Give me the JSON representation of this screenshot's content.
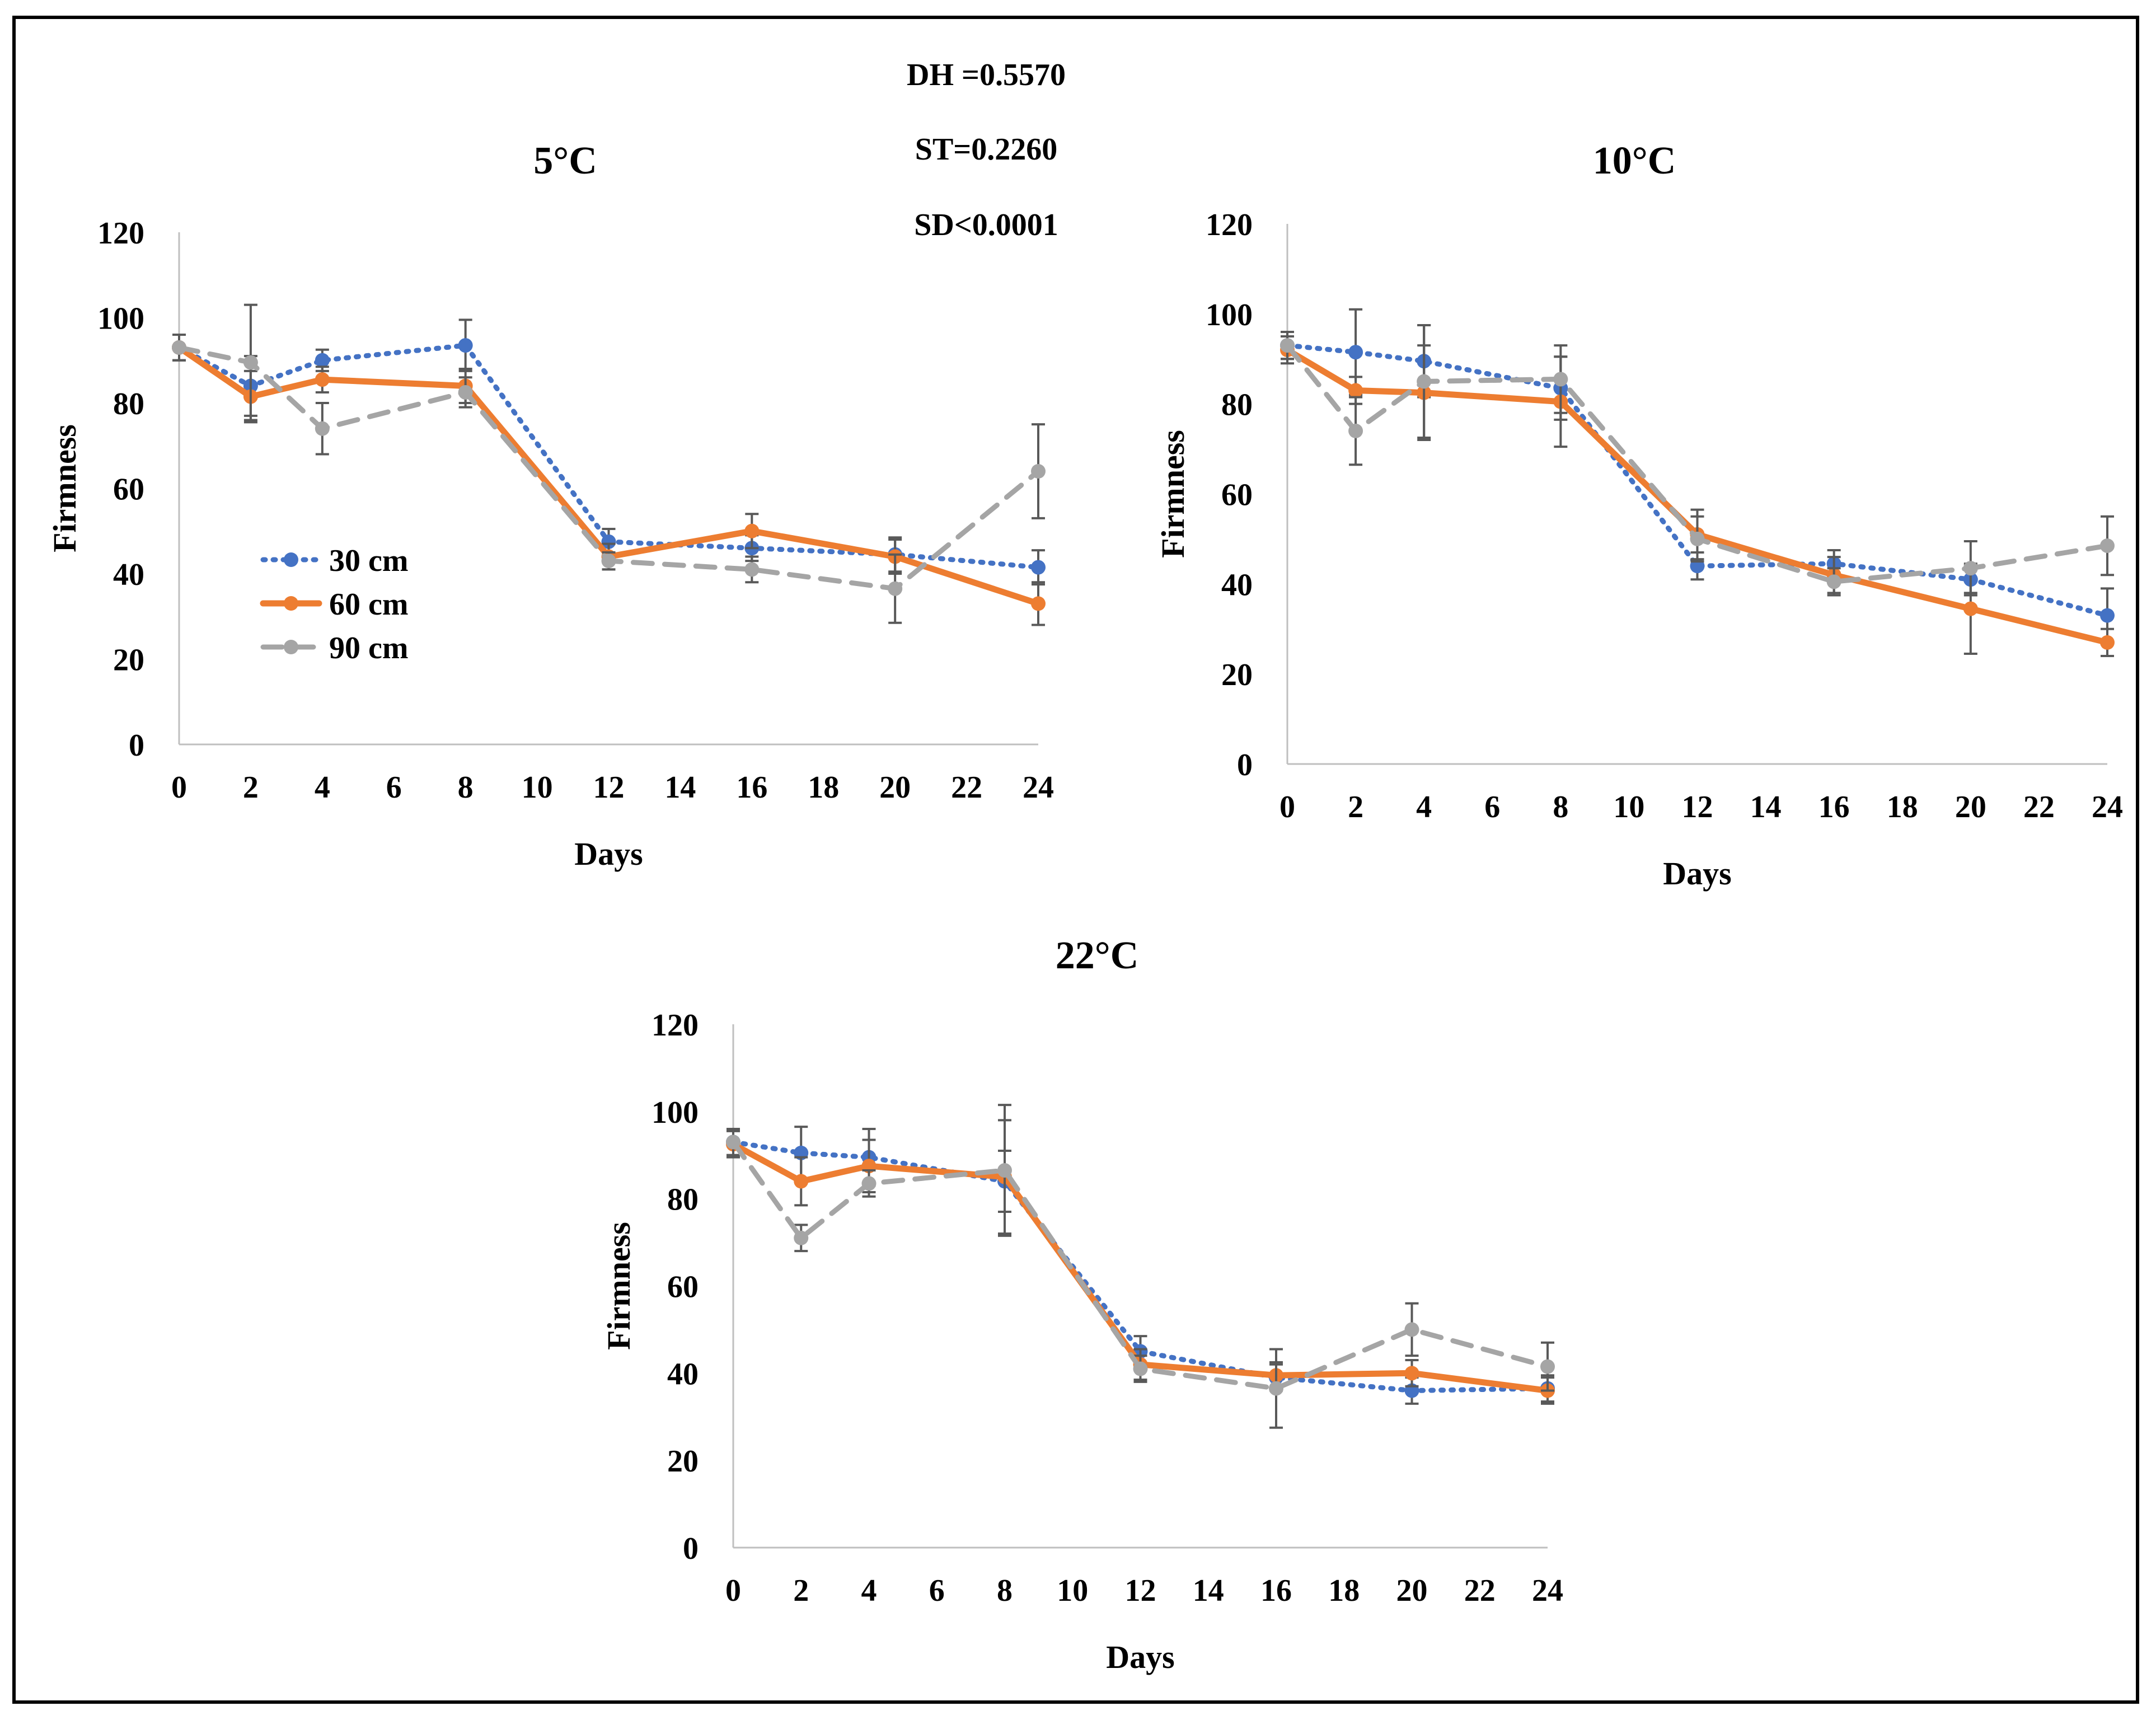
{
  "stats": [
    "DH =0.5570",
    "ST=0.2260",
    "SD<0.0001"
  ],
  "legend": {
    "items": [
      {
        "label": "30 cm",
        "color": "#4472C4",
        "dash": "dotted"
      },
      {
        "label": "60 cm",
        "color": "#ED7D31",
        "dash": "solid"
      },
      {
        "label": "90 cm",
        "color": "#A5A5A5",
        "dash": "dashed"
      }
    ]
  },
  "chart_data": [
    {
      "type": "line",
      "title": "5°C",
      "xlabel": "Days",
      "ylabel": "Firmness",
      "xlim": [
        0,
        24
      ],
      "ylim": [
        0,
        120
      ],
      "xticks": [
        0,
        2,
        4,
        6,
        8,
        10,
        12,
        14,
        16,
        18,
        20,
        22,
        24
      ],
      "yticks": [
        0,
        20,
        40,
        60,
        80,
        100,
        120
      ],
      "x": [
        0,
        2,
        4,
        8,
        12,
        16,
        20,
        24
      ],
      "series": [
        {
          "name": "30 cm",
          "color": "#4472C4",
          "dash": "dotted",
          "values": [
            93,
            84,
            90,
            93.5,
            47.5,
            46,
            44.5,
            41.5
          ],
          "errors": [
            3,
            7,
            2.5,
            6,
            3,
            3,
            4,
            4
          ]
        },
        {
          "name": "60 cm",
          "color": "#ED7D31",
          "dash": "solid",
          "values": [
            93,
            81.5,
            85.5,
            84,
            44,
            50,
            44,
            33
          ],
          "errors": [
            3,
            6,
            3,
            4,
            3,
            4,
            4,
            5
          ]
        },
        {
          "name": "90 cm",
          "color": "#A5A5A5",
          "dash": "dashed",
          "values": [
            93,
            89.5,
            74,
            82.5,
            43,
            41,
            36.5,
            64
          ],
          "errors": [
            3,
            13.5,
            6,
            3.5,
            2,
            3,
            8,
            11
          ]
        }
      ]
    },
    {
      "type": "line",
      "title": "10°C",
      "xlabel": "Days",
      "ylabel": "Firmness",
      "xlim": [
        0,
        24
      ],
      "ylim": [
        0,
        120
      ],
      "xticks": [
        0,
        2,
        4,
        6,
        8,
        10,
        12,
        14,
        16,
        18,
        20,
        22,
        24
      ],
      "yticks": [
        0,
        20,
        40,
        60,
        80,
        100,
        120
      ],
      "x": [
        0,
        2,
        4,
        8,
        12,
        16,
        20,
        24
      ],
      "series": [
        {
          "name": "30 cm",
          "color": "#4472C4",
          "dash": "dotted",
          "values": [
            93,
            91.5,
            89.5,
            83.5,
            44,
            44.5,
            41,
            33
          ],
          "errors": [
            3,
            9.5,
            8,
            7,
            3,
            3,
            3,
            6
          ]
        },
        {
          "name": "60 cm",
          "color": "#ED7D31",
          "dash": "solid",
          "values": [
            92,
            83,
            82.5,
            80.5,
            51,
            42,
            34.5,
            27
          ],
          "errors": [
            3,
            3,
            10.5,
            10,
            5.5,
            4,
            10,
            3
          ]
        },
        {
          "name": "90 cm",
          "color": "#A5A5A5",
          "dash": "dashed",
          "values": [
            93,
            74,
            85,
            85.5,
            50,
            40.5,
            43.5,
            48.5
          ],
          "errors": [
            3,
            7.5,
            12.5,
            7.5,
            5,
            3,
            6,
            6.5
          ]
        }
      ]
    },
    {
      "type": "line",
      "title": "22°C",
      "xlabel": "Days",
      "ylabel": "Firmness",
      "xlim": [
        0,
        24
      ],
      "ylim": [
        0,
        120
      ],
      "xticks": [
        0,
        2,
        4,
        6,
        8,
        10,
        12,
        14,
        16,
        18,
        20,
        22,
        24
      ],
      "yticks": [
        0,
        20,
        40,
        60,
        80,
        100,
        120
      ],
      "x": [
        0,
        2,
        4,
        8,
        12,
        16,
        20,
        24
      ],
      "series": [
        {
          "name": "30 cm",
          "color": "#4472C4",
          "dash": "dotted",
          "values": [
            93,
            90.5,
            89.5,
            84,
            45,
            39,
            36,
            36.5
          ],
          "errors": [
            3,
            6,
            6.5,
            7,
            3.5,
            3,
            3,
            3
          ]
        },
        {
          "name": "60 cm",
          "color": "#ED7D31",
          "dash": "solid",
          "values": [
            92.5,
            84,
            87.5,
            85,
            42,
            39.5,
            40,
            36
          ],
          "errors": [
            3,
            5.5,
            6,
            13,
            3.5,
            3,
            3,
            3
          ]
        },
        {
          "name": "90 cm",
          "color": "#A5A5A5",
          "dash": "dashed",
          "values": [
            93,
            71,
            83.5,
            86.5,
            41,
            36.5,
            50,
            41.5
          ],
          "errors": [
            3,
            3,
            3,
            15,
            3,
            9,
            6,
            5.5
          ]
        }
      ]
    }
  ]
}
